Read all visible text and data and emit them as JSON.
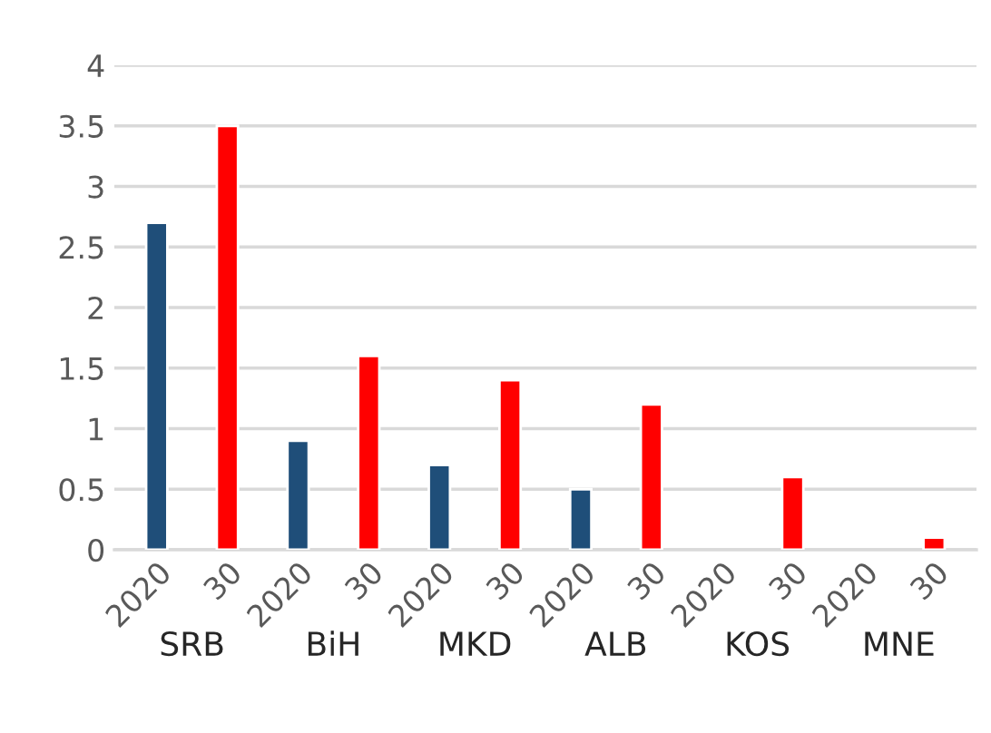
{
  "chart_data": {
    "type": "bar",
    "categories": [
      "2020",
      "30",
      "2020",
      "30",
      "2020",
      "30",
      "2020",
      "30",
      "2020",
      "30",
      "2020",
      "30"
    ],
    "values": [
      2.7,
      3.5,
      0.9,
      1.6,
      0.7,
      1.4,
      0.5,
      1.2,
      null,
      0.6,
      null,
      0.1
    ],
    "colors": [
      "#1f4e79",
      "#ff0000",
      "#1f4e79",
      "#ff0000",
      "#1f4e79",
      "#ff0000",
      "#1f4e79",
      "#ff0000",
      "#1f4e79",
      "#ff0000",
      "#1f4e79",
      "#ff0000"
    ],
    "annotations": [
      "SRB",
      "BiH",
      "MKD",
      "ALB",
      "KOS",
      "MNE"
    ],
    "ylim": [
      0,
      4
    ],
    "yticks": [
      0,
      0.5,
      1,
      1.5,
      2,
      2.5,
      3,
      3.5,
      4
    ],
    "grid": "y"
  }
}
